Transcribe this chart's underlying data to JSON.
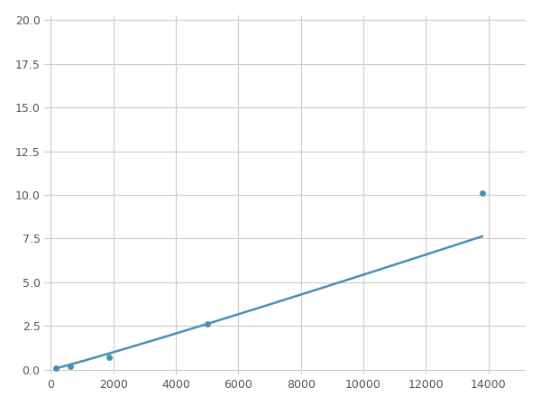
{
  "x": [
    156,
    625,
    1875,
    5000,
    13800
  ],
  "y": [
    0.1,
    0.2,
    0.7,
    2.6,
    10.1
  ],
  "line_color": "#4a90b8",
  "marker_color": "#4a90b8",
  "marker_size": 5,
  "xlim": [
    -200,
    15200
  ],
  "ylim": [
    -0.3,
    20.3
  ],
  "xticks": [
    0,
    2000,
    4000,
    6000,
    8000,
    10000,
    12000,
    14000
  ],
  "yticks": [
    0.0,
    2.5,
    5.0,
    7.5,
    10.0,
    12.5,
    15.0,
    17.5,
    20.0
  ],
  "grid_color": "#cccccc",
  "background_color": "#ffffff",
  "linewidth": 1.8
}
